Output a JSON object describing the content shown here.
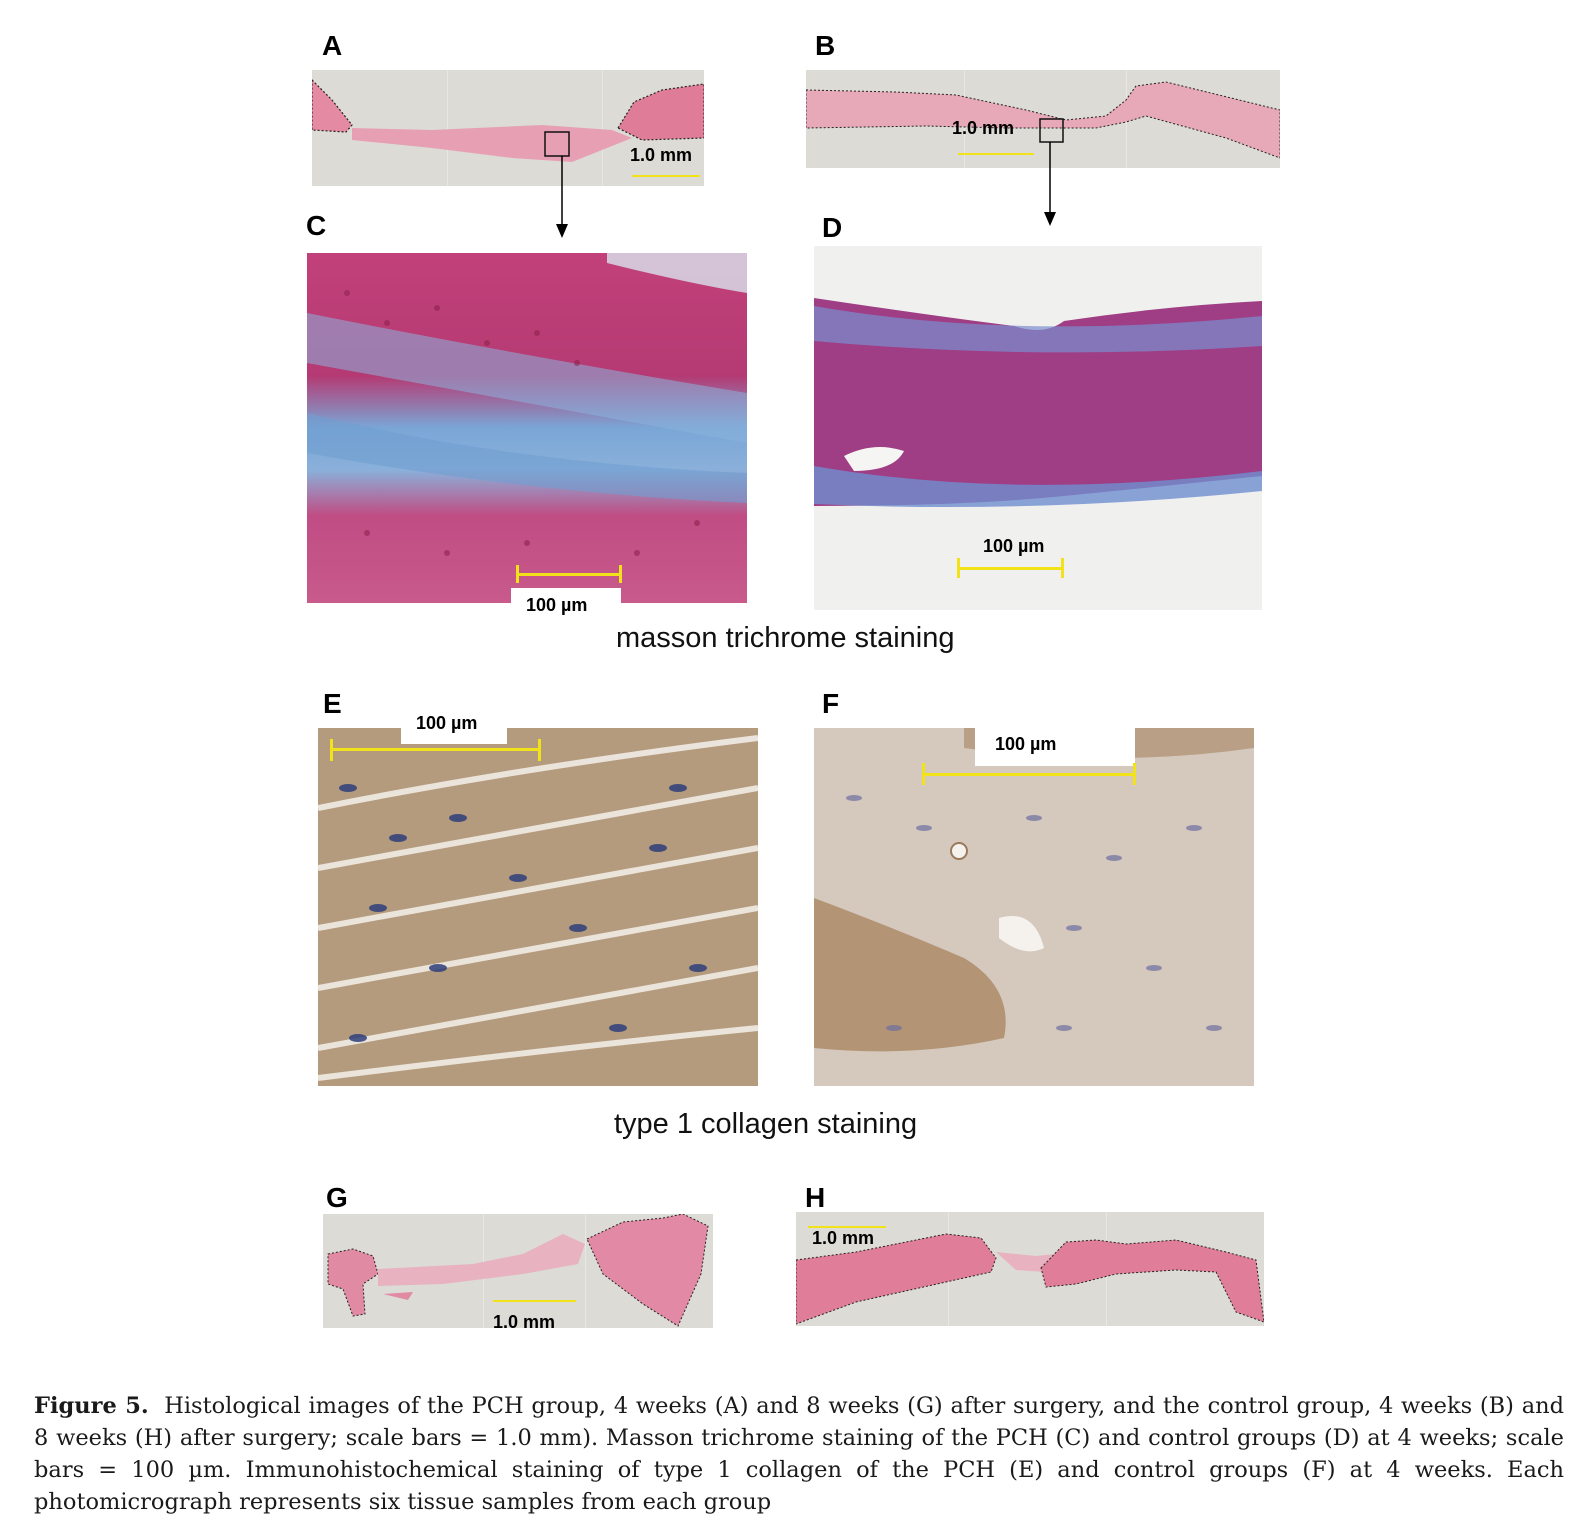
{
  "panels": {
    "A": {
      "label": "A",
      "scale": "1.0 mm"
    },
    "B": {
      "label": "B",
      "scale": "1.0 mm"
    },
    "C": {
      "label": "C",
      "scale": "100 µm"
    },
    "D": {
      "label": "D",
      "scale": "100 µm"
    },
    "E": {
      "label": "E",
      "scale": "100 µm"
    },
    "F": {
      "label": "F",
      "scale": "100 µm"
    },
    "G": {
      "label": "G",
      "scale": "1.0 mm"
    },
    "H": {
      "label": "H",
      "scale": "1.0 mm"
    }
  },
  "section_titles": {
    "masson": "masson trichrome staining",
    "collagen": "type 1 collagen staining"
  },
  "caption": {
    "label": "Figure 5.",
    "text": "Histological images of the PCH group, 4 weeks (A) and 8 weeks (G) after surgery, and the control group, 4 weeks (B) and 8 weeks (H) after surgery; scale bars = 1.0 mm). Masson trichrome staining of the PCH (C) and control groups (D) at 4 weeks; scale bars = 100 µm. Immunohistochemical staining of type 1 collagen of the PCH (E) and control groups (F) at 4 weeks. Each photomicrograph represents six tissue samples from each group"
  },
  "colors": {
    "scale_bar": "#f2e21a",
    "he_pink": "#e07a9a",
    "masson_blue": "#6f9fd0",
    "masson_red": "#b0306a",
    "dab_brown": "#9a7a5a"
  }
}
